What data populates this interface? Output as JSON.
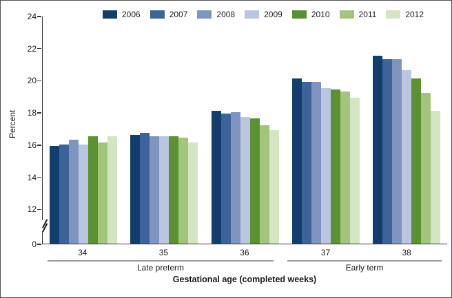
{
  "window": {
    "background": "#ffffff",
    "border_color": "#4e4e4e",
    "axis_color": "#333333",
    "span_line_color": "#9a9a9a"
  },
  "chart_data": {
    "type": "bar",
    "title": "",
    "ylabel": "Percent",
    "xlabel": "Gestational age (completed weeks)",
    "ylim": [
      0,
      24
    ],
    "y_ticks": [
      24,
      22,
      20,
      18,
      16,
      14,
      12,
      0
    ],
    "axis_break_between": [
      0,
      12
    ],
    "grid": false,
    "legend_position": "top",
    "categories": [
      "34",
      "35",
      "36",
      "37",
      "38"
    ],
    "category_groups": [
      {
        "label": "Late preterm",
        "categories": [
          "34",
          "35",
          "36"
        ]
      },
      {
        "label": "Early term",
        "categories": [
          "37",
          "38"
        ]
      }
    ],
    "series": [
      {
        "name": "2006",
        "color": "#113e6d",
        "values": [
          15.9,
          16.6,
          18.1,
          20.1,
          21.5
        ]
      },
      {
        "name": "2007",
        "color": "#3d6399",
        "values": [
          16.0,
          16.7,
          17.9,
          19.9,
          21.3
        ]
      },
      {
        "name": "2008",
        "color": "#7e95c0",
        "values": [
          16.3,
          16.5,
          18.0,
          19.9,
          21.3
        ]
      },
      {
        "name": "2009",
        "color": "#bac6df",
        "values": [
          16.0,
          16.5,
          17.7,
          19.5,
          20.6
        ]
      },
      {
        "name": "2010",
        "color": "#5b9133",
        "values": [
          16.5,
          16.5,
          17.6,
          19.4,
          20.1
        ]
      },
      {
        "name": "2011",
        "color": "#a3c47c",
        "values": [
          16.1,
          16.4,
          17.2,
          19.3,
          19.2
        ]
      },
      {
        "name": "2012",
        "color": "#d3e5c2",
        "values": [
          16.5,
          16.1,
          16.9,
          18.9,
          18.1
        ]
      }
    ]
  }
}
